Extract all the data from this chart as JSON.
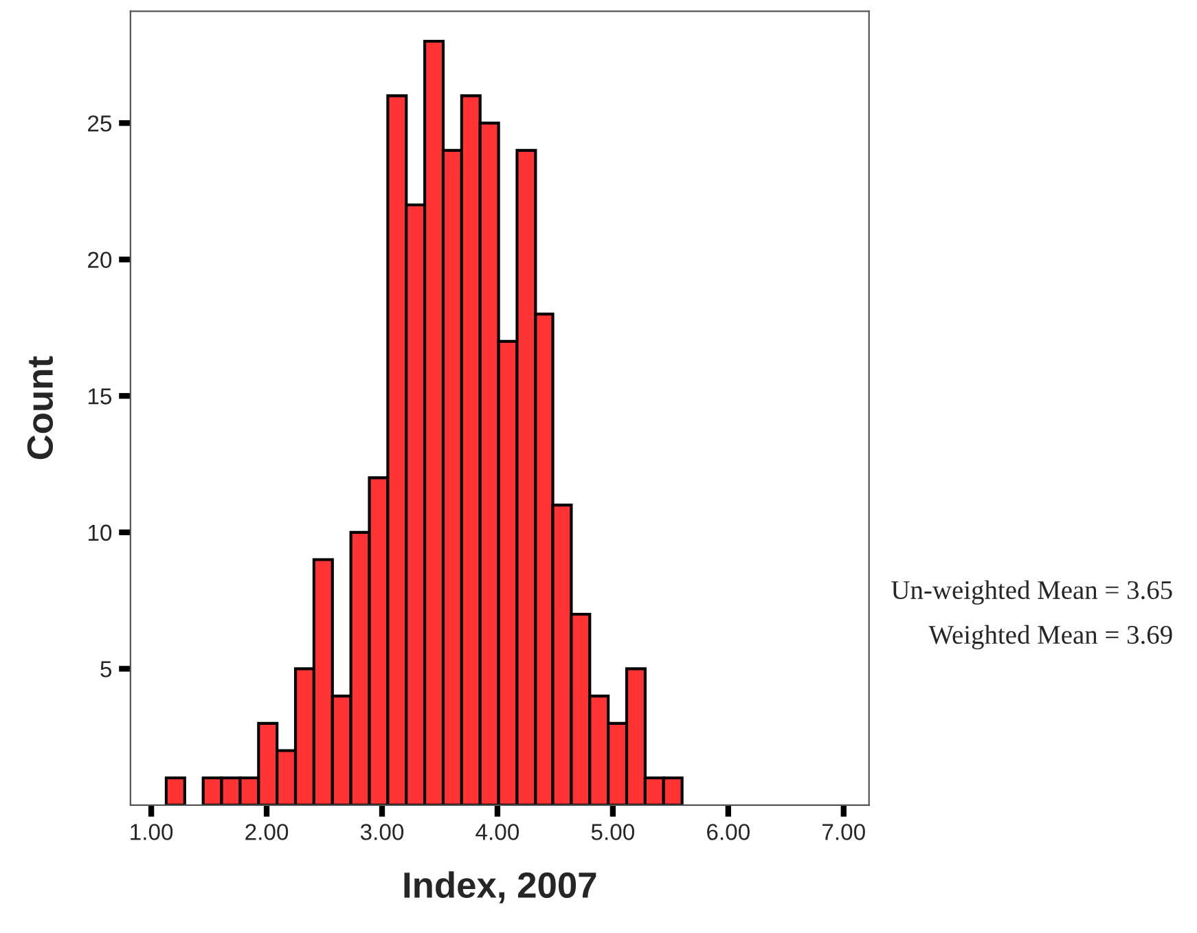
{
  "chart_data": {
    "type": "histogram",
    "xlabel": "Index, 2007",
    "ylabel": "Count",
    "bins": [
      1.13,
      1.29,
      1.45,
      1.61,
      1.77,
      1.93,
      2.09,
      2.25,
      2.41,
      2.57,
      2.73,
      2.89,
      3.05,
      3.21,
      3.37,
      3.53,
      3.69,
      3.85,
      4.01,
      4.17,
      4.33,
      4.48,
      4.64,
      4.8,
      4.96,
      5.12,
      5.28,
      5.44,
      5.6
    ],
    "values": [
      1,
      0,
      1,
      1,
      1,
      3,
      2,
      5,
      9,
      4,
      10,
      12,
      26,
      22,
      28,
      24,
      26,
      25,
      17,
      24,
      18,
      11,
      7,
      4,
      3,
      5,
      1,
      1
    ],
    "color": "#ff3333",
    "xlim": [
      0.82,
      7.22
    ],
    "xticks": [
      {
        "value": 1,
        "label": "1.00"
      },
      {
        "value": 2,
        "label": "2.00"
      },
      {
        "value": 3,
        "label": "3.00"
      },
      {
        "value": 4,
        "label": "4.00"
      },
      {
        "value": 5,
        "label": "5.00"
      },
      {
        "value": 6,
        "label": "6.00"
      },
      {
        "value": 7,
        "label": "7.00"
      }
    ],
    "ylim": [
      0,
      29.1
    ],
    "yticks": [
      5,
      10,
      15,
      20,
      25
    ],
    "grid": false,
    "annotations": [
      "Un-weighted Mean = 3.65",
      "Weighted Mean = 3.69"
    ]
  }
}
